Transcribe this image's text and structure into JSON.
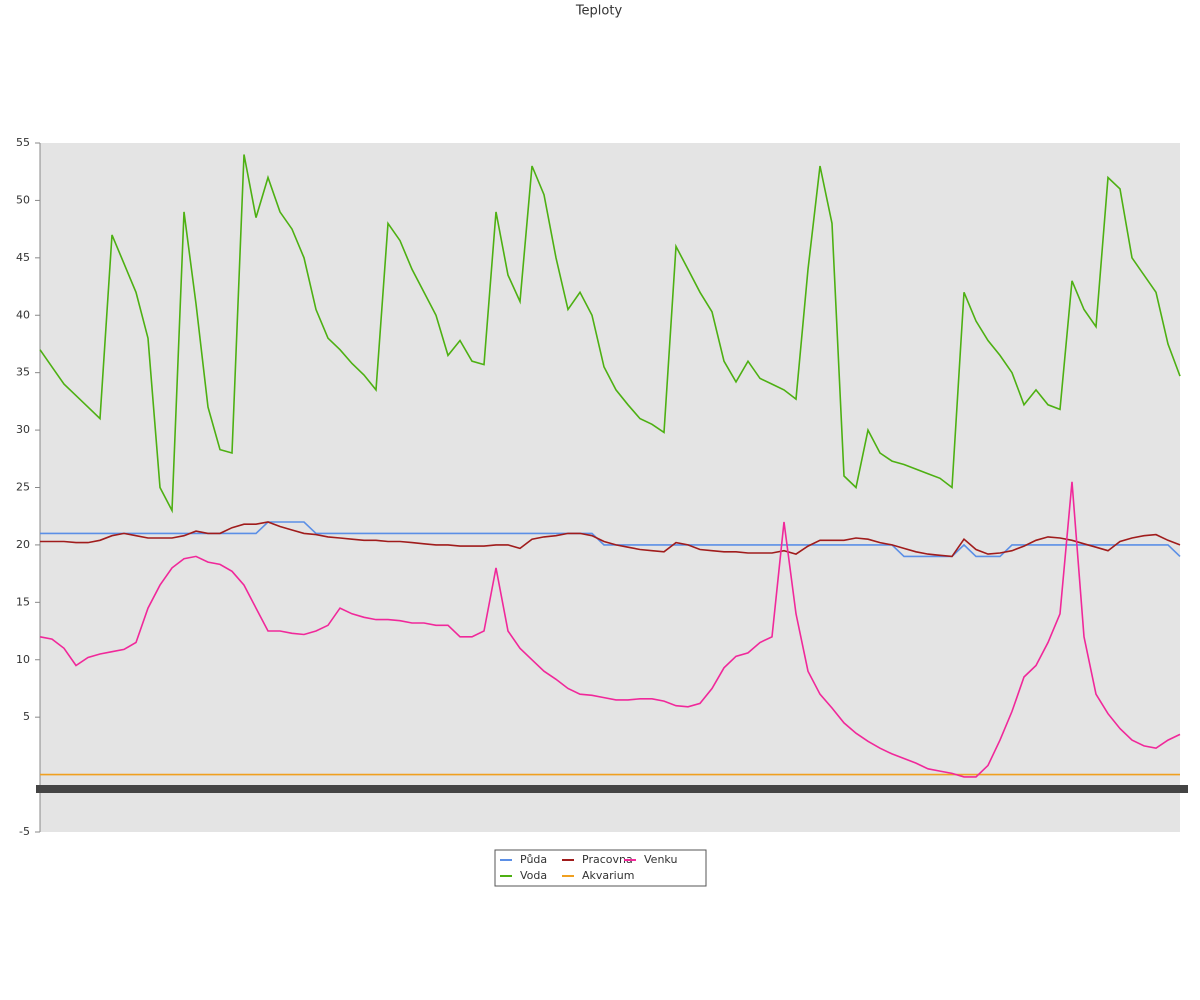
{
  "chart_data": {
    "type": "line",
    "title": "Teploty",
    "ylim": [
      -5,
      55
    ],
    "yticks": [
      -5,
      5,
      10,
      15,
      20,
      25,
      30,
      35,
      40,
      45,
      50,
      55
    ],
    "grid": false,
    "legend": "bottom",
    "series": [
      {
        "name": "Půda",
        "color": "#5b8fe6",
        "values": [
          21,
          21,
          21,
          21,
          21,
          21,
          21,
          21,
          21,
          21,
          21,
          21,
          21,
          21,
          21,
          21,
          21,
          21,
          21,
          22,
          22,
          22,
          22,
          21,
          21,
          21,
          21,
          21,
          21,
          21,
          21,
          21,
          21,
          21,
          21,
          21,
          21,
          21,
          21,
          21,
          21,
          21,
          21,
          21,
          21,
          21,
          21,
          20,
          20,
          20,
          20,
          20,
          20,
          20,
          20,
          20,
          20,
          20,
          20,
          20,
          20,
          20,
          20,
          20,
          20,
          20,
          20,
          20,
          20,
          20,
          20,
          20,
          19,
          19,
          19,
          19,
          19,
          20,
          19,
          19,
          19,
          20,
          20,
          20,
          20,
          20,
          20,
          20,
          20,
          20,
          20,
          20,
          20,
          20,
          20,
          19
        ]
      },
      {
        "name": "Voda",
        "color": "#4db012",
        "values": [
          37,
          35.5,
          34,
          33,
          32,
          31,
          47,
          44.5,
          42,
          38,
          25,
          23,
          49,
          41,
          32,
          28.3,
          28,
          54,
          48.5,
          52,
          49,
          47.5,
          45,
          40.5,
          38,
          37,
          35.8,
          34.8,
          33.5,
          48,
          46.5,
          44,
          42,
          40,
          36.5,
          37.8,
          36,
          35.7,
          49,
          43.5,
          41.2,
          53,
          50.5,
          45,
          40.5,
          42,
          40,
          35.5,
          33.5,
          32.2,
          31,
          30.5,
          29.8,
          46,
          44,
          42,
          40.3,
          36,
          34.2,
          36,
          34.5,
          34,
          33.5,
          32.7,
          44,
          53,
          48,
          26,
          25,
          30,
          28,
          27.3,
          27,
          26.6,
          26.2,
          25.8,
          25,
          42,
          39.5,
          37.8,
          36.5,
          35,
          32.2,
          33.5,
          32.2,
          31.8,
          43,
          40.5,
          39,
          52,
          51,
          45,
          43.5,
          42,
          37.5,
          34.7
        ]
      },
      {
        "name": "Pracovna",
        "color": "#a01c1c",
        "values": [
          20.3,
          20.3,
          20.3,
          20.2,
          20.2,
          20.4,
          20.8,
          21,
          20.8,
          20.6,
          20.6,
          20.6,
          20.8,
          21.2,
          21,
          21,
          21.5,
          21.8,
          21.8,
          22,
          21.6,
          21.3,
          21,
          20.9,
          20.7,
          20.6,
          20.5,
          20.4,
          20.4,
          20.3,
          20.3,
          20.2,
          20.1,
          20,
          20,
          19.9,
          19.9,
          19.9,
          20,
          20,
          19.7,
          20.5,
          20.7,
          20.8,
          21,
          21,
          20.8,
          20.3,
          20,
          19.8,
          19.6,
          19.5,
          19.4,
          20.2,
          20,
          19.6,
          19.5,
          19.4,
          19.4,
          19.3,
          19.3,
          19.3,
          19.5,
          19.2,
          19.9,
          20.4,
          20.4,
          20.4,
          20.6,
          20.5,
          20.2,
          20,
          19.7,
          19.4,
          19.2,
          19.1,
          19,
          20.5,
          19.6,
          19.2,
          19.3,
          19.5,
          19.9,
          20.4,
          20.7,
          20.6,
          20.4,
          20.1,
          19.8,
          19.5,
          20.3,
          20.6,
          20.8,
          20.9,
          20.4,
          20
        ]
      },
      {
        "name": "Akvarium",
        "color": "#f0a020",
        "values": [
          0,
          0,
          0,
          0,
          0,
          0,
          0,
          0,
          0,
          0,
          0,
          0,
          0,
          0,
          0,
          0,
          0,
          0,
          0,
          0,
          0,
          0,
          0,
          0,
          0,
          0,
          0,
          0,
          0,
          0,
          0,
          0,
          0,
          0,
          0,
          0,
          0,
          0,
          0,
          0,
          0,
          0,
          0,
          0,
          0,
          0,
          0,
          0,
          0,
          0,
          0,
          0,
          0,
          0,
          0,
          0,
          0,
          0,
          0,
          0,
          0,
          0,
          0,
          0,
          0,
          0,
          0,
          0,
          0,
          0,
          0,
          0,
          0,
          0,
          0,
          0,
          0,
          0,
          0,
          0,
          0,
          0,
          0,
          0,
          0,
          0,
          0,
          0,
          0,
          0,
          0,
          0,
          0,
          0,
          0,
          0
        ]
      },
      {
        "name": "Venku",
        "color": "#f0289a",
        "values": [
          12,
          11.8,
          11,
          9.5,
          10.2,
          10.5,
          10.7,
          10.9,
          11.5,
          14.5,
          16.5,
          18,
          18.8,
          19,
          18.5,
          18.3,
          17.7,
          16.5,
          14.5,
          12.5,
          12.5,
          12.3,
          12.2,
          12.5,
          13,
          14.5,
          14,
          13.7,
          13.5,
          13.5,
          13.4,
          13.2,
          13.2,
          13,
          13,
          12,
          12,
          12.5,
          18,
          12.5,
          11,
          10,
          9,
          8.3,
          7.5,
          7,
          6.9,
          6.7,
          6.5,
          6.5,
          6.6,
          6.6,
          6.4,
          6,
          5.9,
          6.2,
          7.5,
          9.3,
          10.3,
          10.6,
          11.5,
          12,
          22,
          14,
          9,
          7,
          5.8,
          4.5,
          3.6,
          2.9,
          2.3,
          1.8,
          1.4,
          1,
          0.5,
          0.3,
          0.1,
          -0.2,
          -0.2,
          0.8,
          3,
          5.5,
          8.5,
          9.5,
          11.5,
          14,
          25.5,
          12,
          7,
          5.3,
          4,
          3,
          2.5,
          2.3,
          3,
          3.5
        ]
      }
    ]
  }
}
